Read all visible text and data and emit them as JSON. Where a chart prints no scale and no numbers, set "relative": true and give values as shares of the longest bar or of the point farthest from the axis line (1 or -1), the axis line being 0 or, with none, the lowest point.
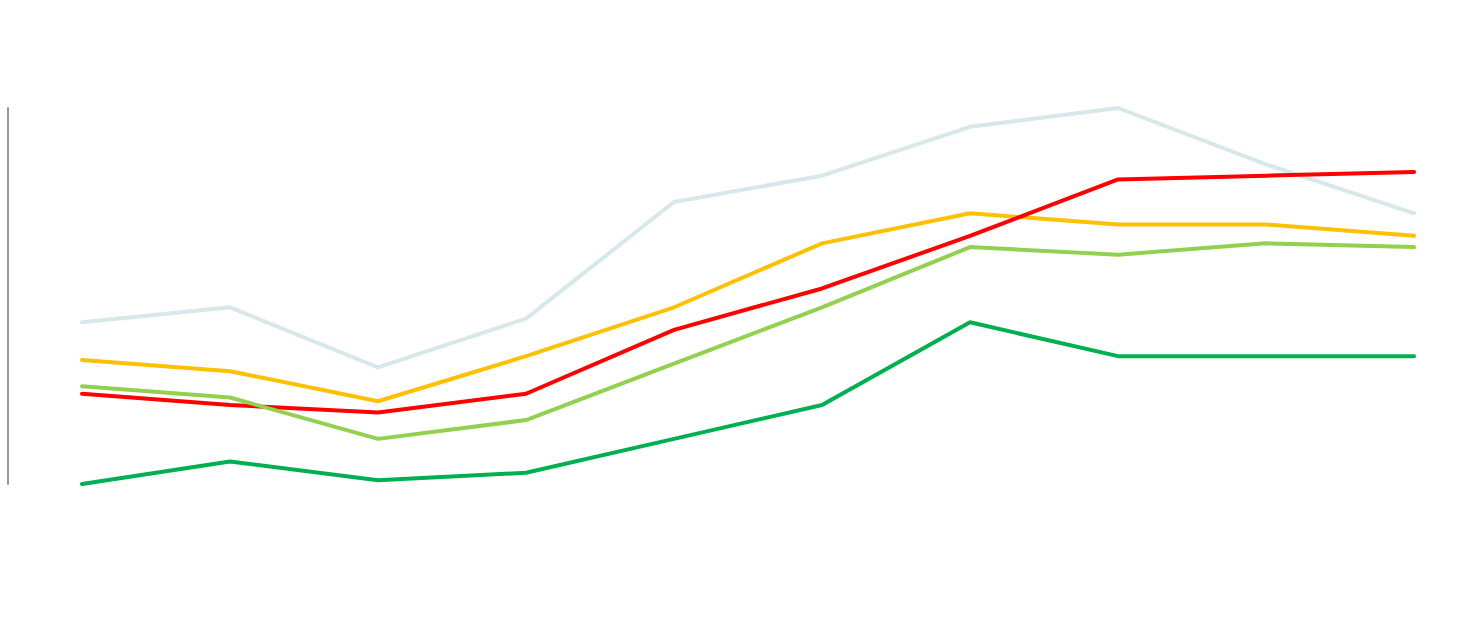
{
  "chart_data": {
    "type": "line",
    "relative": true,
    "categories": [
      null,
      null,
      null,
      null,
      null,
      null,
      null,
      null,
      null,
      null
    ],
    "series": [
      {
        "color": "#d6e8ea",
        "values": [
          0.43,
          0.47,
          0.31,
          0.44,
          0.75,
          0.82,
          0.95,
          1,
          0.85,
          0.72
        ]
      },
      {
        "color": "#ffc000",
        "values": [
          0.33,
          0.3,
          0.22,
          0.34,
          0.47,
          0.64,
          0.72,
          0.69,
          0.69,
          0.66
        ]
      },
      {
        "color": "#ff0000",
        "values": [
          0.24,
          0.21,
          0.19,
          0.24,
          0.41,
          0.52,
          0.66,
          0.81,
          0.82,
          0.83
        ]
      },
      {
        "color": "#92d050",
        "values": [
          0.26,
          0.23,
          0.12,
          0.17,
          0.32,
          0.47,
          0.63,
          0.61,
          0.64,
          0.63
        ]
      },
      {
        "color": "#00b050",
        "values": [
          0,
          0.06,
          0.01,
          0.03,
          0.12,
          0.21,
          0.43,
          0.34,
          0.34,
          0.34
        ]
      }
    ],
    "grid": false,
    "marker": "none",
    "line_style": "solid"
  }
}
